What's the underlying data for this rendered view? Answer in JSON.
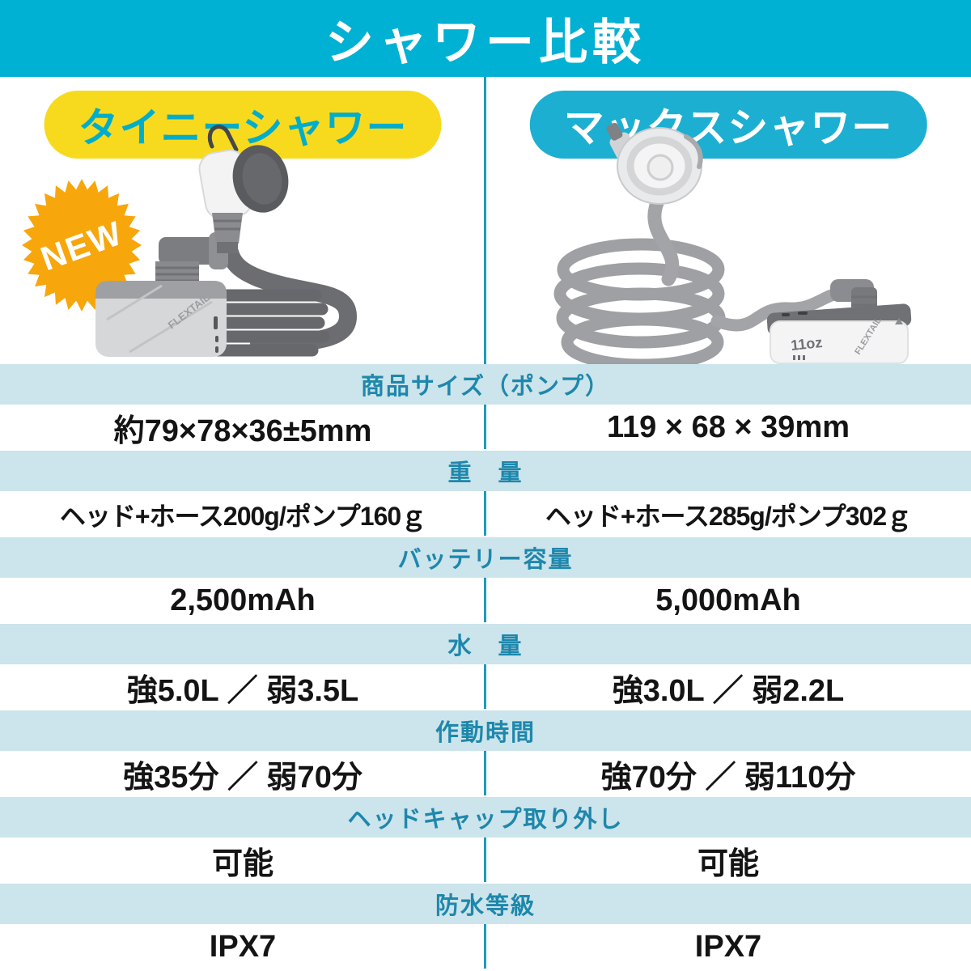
{
  "page": {
    "title": "シャワー比較"
  },
  "products": {
    "left": {
      "name": "タイニーシャワー",
      "badge": "NEW",
      "pump_brand": "FLEXTAIL"
    },
    "right": {
      "name": "マックスシャワー",
      "pump_brand": "FLEXTAIL",
      "pump_capacity": "11oz"
    }
  },
  "comparison_table": {
    "rows": [
      {
        "label": "商品サイズ（ポンプ）",
        "left": "約79×78×36±5mm",
        "right": "119 × 68 × 39mm"
      },
      {
        "label": "重　量",
        "left": "ヘッド+ホース200g/ポンプ160ｇ",
        "right": "ヘッド+ホース285g/ポンプ302ｇ"
      },
      {
        "label": "バッテリー容量",
        "left": "2,500mAh",
        "right": "5,000mAh"
      },
      {
        "label": "水　量",
        "left": "強5.0L ／ 弱3.5L",
        "right": "強3.0L ／ 弱2.2L"
      },
      {
        "label": "作動時間",
        "left": "強35分 ／ 弱70分",
        "right": "強70分 ／ 弱110分"
      },
      {
        "label": "ヘッドキャップ取り外し",
        "left": "可能",
        "right": "可能"
      },
      {
        "label": "防水等級",
        "left": "IPX7",
        "right": "IPX7"
      }
    ]
  },
  "colors": {
    "header_cyan": "#00B1D4",
    "pill_yellow": "#F7DA1E",
    "pill_yellow_text": "#00ADCB",
    "pill_cyan": "#1CAFD1",
    "spec_header_bg": "#CCE4EB",
    "spec_header_text": "#1E87AC",
    "divider_teal": "#2099BB",
    "badge_orange": "#F7A60B",
    "value_text": "#141414"
  }
}
